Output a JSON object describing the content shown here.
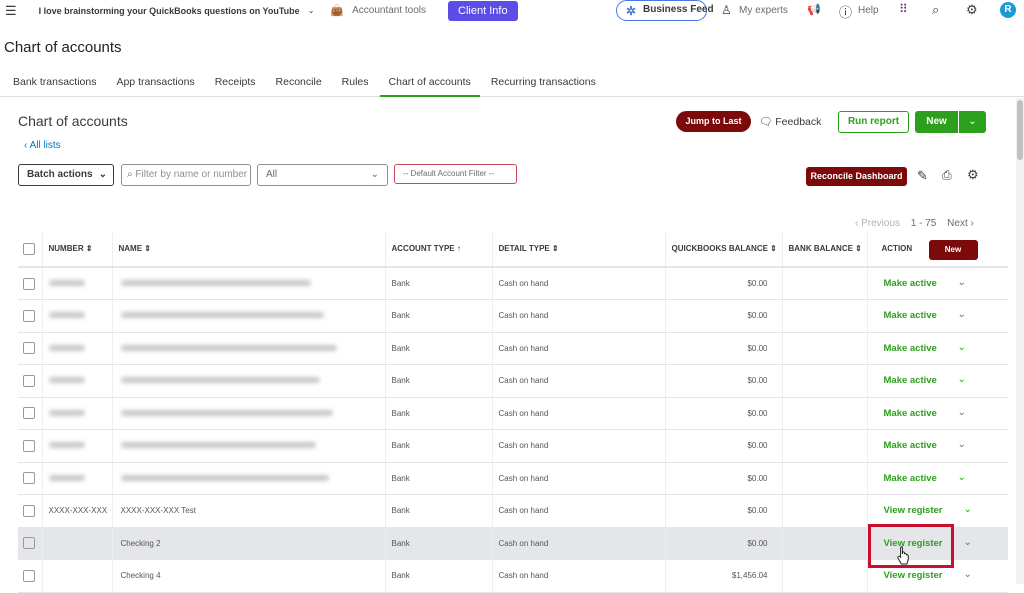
{
  "topbar": {
    "company": "I love brainstorming your QuickBooks questions on YouTube",
    "accountant_tools": "Accountant tools",
    "client_info": "Client Info",
    "business_feed": "Business Feed",
    "my_experts": "My experts",
    "help": "Help",
    "avatar": "R"
  },
  "page_title": "Chart of accounts",
  "tabs": [
    "Bank transactions",
    "App transactions",
    "Receipts",
    "Reconcile",
    "Rules",
    "Chart of accounts",
    "Recurring transactions"
  ],
  "active_tab": "Chart of accounts",
  "section_title": "Chart of accounts",
  "all_lists": "All lists",
  "buttons": {
    "jump_to_last": "Jump to Last",
    "feedback": "Feedback",
    "run_report": "Run report",
    "new": "New",
    "reconcile_dashboard": "Reconcile Dashboard",
    "batch_actions": "Batch actions",
    "table_new": "New"
  },
  "filters": {
    "search_placeholder": "Filter by name or number",
    "type_value": "All",
    "default_filter": "-- Default Account Filter --"
  },
  "pagination": {
    "previous": "Previous",
    "range": "1 - 75",
    "next": "Next"
  },
  "columns": [
    "NUMBER",
    "NAME",
    "ACCOUNT TYPE",
    "DETAIL TYPE",
    "QUICKBOOKS BALANCE",
    "BANK BALANCE",
    "ACTION"
  ],
  "rows": [
    {
      "number": "",
      "name": "",
      "type": "Bank",
      "detail": "Cash on hand",
      "qb": "$0.00",
      "action": "Make active",
      "blurred": true
    },
    {
      "number": "",
      "name": "",
      "type": "Bank",
      "detail": "Cash on hand",
      "qb": "$0.00",
      "action": "Make active",
      "blurred": true
    },
    {
      "number": "",
      "name": "",
      "type": "Bank",
      "detail": "Cash on hand",
      "qb": "$0.00",
      "action": "Make active",
      "blurred": true
    },
    {
      "number": "",
      "name": "",
      "type": "Bank",
      "detail": "Cash on hand",
      "qb": "$0.00",
      "action": "Make active",
      "blurred": true
    },
    {
      "number": "",
      "name": "",
      "type": "Bank",
      "detail": "Cash on hand",
      "qb": "$0.00",
      "action": "Make active",
      "blurred": true
    },
    {
      "number": "",
      "name": "",
      "type": "Bank",
      "detail": "Cash on hand",
      "qb": "$0.00",
      "action": "Make active",
      "blurred": true
    },
    {
      "number": "",
      "name": "",
      "type": "Bank",
      "detail": "Cash on hand",
      "qb": "$0.00",
      "action": "Make active",
      "blurred": true
    },
    {
      "number": "XXXX-XXX-XXX",
      "name": "XXXX-XXX-XXX Test",
      "type": "Bank",
      "detail": "Cash on hand",
      "qb": "$0.00",
      "action": "View register"
    },
    {
      "number": "",
      "name": "Checking 2",
      "type": "Bank",
      "detail": "Cash on hand",
      "qb": "$0.00",
      "action": "View register",
      "highlighted": true
    },
    {
      "number": "",
      "name": "Checking 4",
      "type": "Bank",
      "detail": "Cash on hand",
      "qb": "$1,456.04",
      "action": "View register"
    }
  ],
  "colors": {
    "green": "#2ca01c",
    "maroon": "#7c0a0a",
    "client_info": "#5b4de6",
    "highlight_box": "#c8102e"
  }
}
